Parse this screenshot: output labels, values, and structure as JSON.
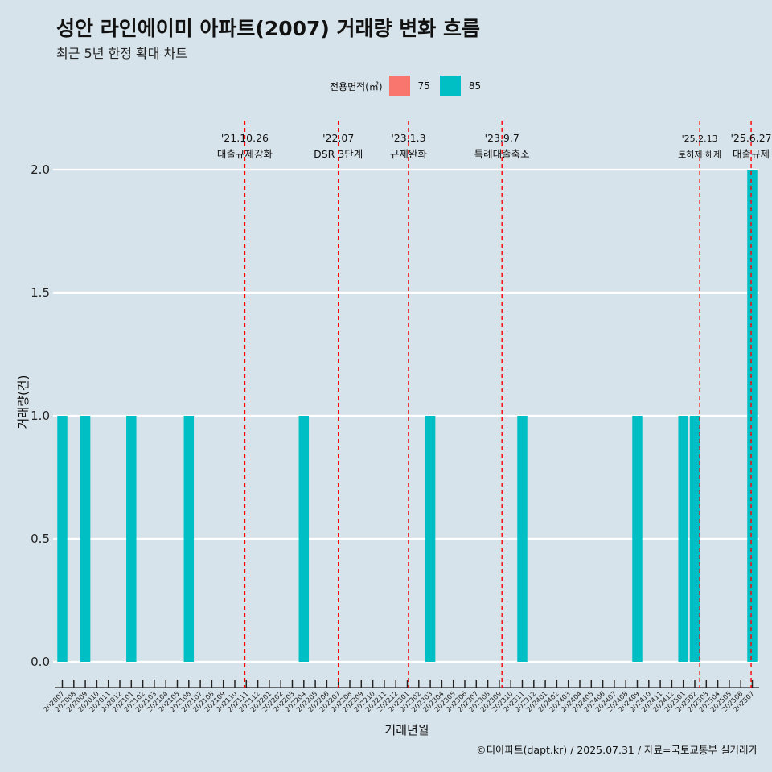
{
  "title": "성안 라인에이미 아파트(2007) 거래량 변화 흐름",
  "subtitle": "최근 5년 한정 확대 차트",
  "caption": "©디아파트(dapt.kr) / 2025.07.31 / 자료=국토교통부 실거래가",
  "legend": {
    "title": "전용면적(㎡)",
    "items": [
      {
        "label": "75",
        "color": "#f8766d"
      },
      {
        "label": "85",
        "color": "#00bfc4"
      }
    ]
  },
  "chart_data": {
    "type": "bar",
    "xlabel": "거래년월",
    "ylabel": "거래량(건)",
    "ylim": [
      0,
      2.0
    ],
    "yticks": [
      "0.0",
      "0.5",
      "1.0",
      "1.5",
      "2.0"
    ],
    "grid": true,
    "legend_position": "top",
    "categories": [
      "202007",
      "202008",
      "202009",
      "202010",
      "202011",
      "202012",
      "202101",
      "202102",
      "202103",
      "202104",
      "202105",
      "202106",
      "202107",
      "202108",
      "202109",
      "202110",
      "202111",
      "202112",
      "202201",
      "202202",
      "202203",
      "202204",
      "202205",
      "202206",
      "202207",
      "202208",
      "202209",
      "202210",
      "202211",
      "202212",
      "202301",
      "202302",
      "202303",
      "202304",
      "202305",
      "202306",
      "202307",
      "202308",
      "202309",
      "202310",
      "202311",
      "202312",
      "202401",
      "202402",
      "202403",
      "202404",
      "202405",
      "202406",
      "202407",
      "202408",
      "202409",
      "202410",
      "202411",
      "202412",
      "202501",
      "202502",
      "202503",
      "202504",
      "202505",
      "202506",
      "202507"
    ],
    "series": [
      {
        "name": "85",
        "color": "#00bfc4",
        "values": [
          1,
          0,
          1,
          0,
          0,
          0,
          1,
          0,
          0,
          0,
          0,
          1,
          0,
          0,
          0,
          0,
          0,
          0,
          0,
          0,
          0,
          1,
          0,
          0,
          0,
          0,
          0,
          0,
          0,
          0,
          0,
          0,
          1,
          0,
          0,
          0,
          0,
          0,
          0,
          0,
          1,
          0,
          0,
          0,
          0,
          0,
          0,
          0,
          0,
          0,
          1,
          0,
          0,
          0,
          1,
          1,
          0,
          0,
          0,
          0,
          2
        ]
      }
    ],
    "events": [
      {
        "x": 202110.87,
        "date": "'21.10.26",
        "label": "대출규제강화"
      },
      {
        "x": 202207.0,
        "date": "'22.07",
        "label": "DSR 3단계"
      },
      {
        "x": 202301.1,
        "date": "'23.1.3",
        "label": "규제완화"
      },
      {
        "x": 202309.23,
        "date": "'23.9.7",
        "label": "특례대출축소"
      },
      {
        "x": 202502.43,
        "date": "'25.2.13",
        "label": "토허제 해제"
      },
      {
        "x": 202506.9,
        "date": "'25.6.27",
        "label": "대출규제"
      }
    ]
  }
}
